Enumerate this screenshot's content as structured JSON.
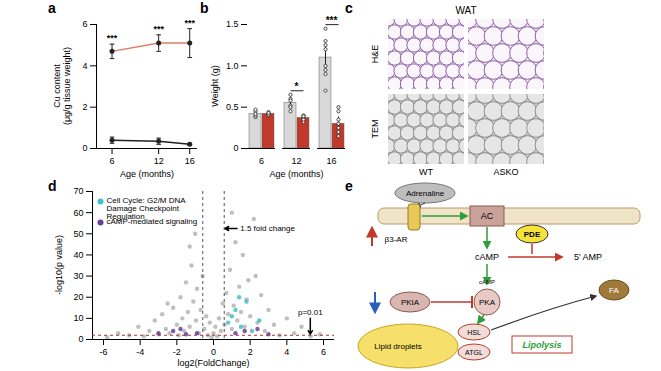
{
  "panel_labels": [
    "a",
    "b",
    "c",
    "d",
    "e"
  ],
  "chart_data": [
    {
      "type": "line",
      "x": [
        6,
        12,
        16
      ],
      "xlim": [
        4,
        17
      ],
      "xticks": [
        6,
        12,
        16
      ],
      "ylim": [
        0,
        6
      ],
      "yticks": [
        0,
        2,
        4,
        6
      ],
      "x_label": "Age (months)",
      "y_label": "Cu content\n(μg/g tissue weight)",
      "marker": "circle",
      "series": [
        {
          "color": "#e07b6a",
          "values": [
            4.7,
            5.1,
            5.1
          ],
          "errors": [
            0.35,
            0.4,
            0.7
          ],
          "significance": [
            "***",
            "***",
            "***"
          ]
        },
        {
          "color": "#222222",
          "values": [
            0.4,
            0.35,
            0.2
          ],
          "errors": [
            0.15,
            0.15,
            0.05
          ]
        }
      ]
    },
    {
      "type": "bar",
      "categories": [
        6,
        12,
        16
      ],
      "x_label": "Age (months)",
      "y_label": "Weight (g)",
      "ylim": [
        0,
        1.5
      ],
      "yticks": [
        0,
        0.5,
        {
          "value": 1,
          "label": "1.0"
        },
        1.5
      ],
      "series": [
        {
          "color": "#d9d9d9",
          "values": [
            0.42,
            0.55,
            1.1
          ],
          "errors": [
            0.04,
            0.07,
            0.15
          ],
          "points": [
            [
              0.38,
              0.45,
              0.47,
              0.4,
              0.42
            ],
            [
              0.45,
              0.6,
              0.52,
              0.65,
              0.5,
              0.58
            ],
            [
              0.7,
              1.3,
              0.95,
              1.45,
              1.0,
              1.2,
              0.9,
              1.25
            ]
          ]
        },
        {
          "color": "#c0392b",
          "values": [
            0.42,
            0.37,
            0.3
          ],
          "errors": [
            0.02,
            0.03,
            0.08
          ],
          "points": [
            [
              0.4,
              0.44,
              0.41,
              0.43
            ],
            [
              0.32,
              0.38,
              0.4,
              0.35,
              0.39
            ],
            [
              0.15,
              0.3,
              0.5,
              0.2,
              0.35,
              0.25,
              0.45
            ]
          ]
        }
      ],
      "significance": [
        null,
        "*",
        "***"
      ]
    },
    {
      "type": "scatter",
      "x_label": "log2(FoldChange)",
      "y_label": "-log10(p value)",
      "xlim": [
        -6.6,
        6.6
      ],
      "xticks": [
        -6,
        -4,
        -2,
        0,
        2,
        4,
        6
      ],
      "ylim": [
        0,
        70
      ],
      "yticks": [
        0,
        10,
        20,
        30,
        40,
        50,
        60,
        70
      ],
      "fold_change_lines": [
        -0.585,
        0.585
      ],
      "p_value_line": 2,
      "annotations": [
        "1.5 fold change",
        "p=0.01"
      ],
      "legend": "top-left",
      "series": [
        {
          "color": "#b5b5b5",
          "x": [
            -5.8,
            -5.2,
            -4.6,
            -4.1,
            -3.8,
            -3.5,
            -3.2,
            -3,
            -2.8,
            -2.6,
            -2.4,
            -2.2,
            -2,
            -1.9,
            -1.8,
            -1.7,
            -1.6,
            -1.5,
            -1.4,
            -1.3,
            -1.2,
            -1.1,
            -1,
            -0.95,
            -0.9,
            -0.8,
            -0.7,
            -0.6,
            -0.5,
            -0.4,
            -0.3,
            -0.2,
            -0.1,
            0,
            0.1,
            0.2,
            0.3,
            0.4,
            0.5,
            0.6,
            0.7,
            0.8,
            0.9,
            1,
            1.1,
            1.2,
            1.3,
            1.4,
            1.5,
            1.6,
            1.7,
            1.8,
            1.9,
            2,
            2.2,
            2.4,
            2.6,
            2.8,
            3,
            3.3,
            3.6,
            4,
            4.4,
            4.8,
            5.3,
            5.8,
            -2.5,
            2.3,
            1,
            -1.3
          ],
          "y": [
            1,
            3,
            2,
            6,
            1.5,
            4,
            9,
            2.5,
            12,
            5,
            3,
            15,
            7,
            2,
            20,
            10,
            4,
            27,
            13,
            6,
            35,
            18,
            50,
            9,
            24,
            3,
            14,
            30,
            5,
            11,
            2,
            8,
            1,
            3,
            6,
            1.5,
            10,
            4,
            17,
            7,
            22,
            12,
            33,
            5,
            16,
            46,
            9,
            25,
            13,
            40,
            6,
            19,
            28,
            11,
            57,
            8,
            21,
            4,
            14,
            7,
            2,
            10,
            3,
            6,
            1.5,
            2.5,
            17,
            30,
            60,
            44
          ]
        },
        {
          "name": "Cell Cycle: G2/M DNA Damage Checkpoint Regulation",
          "color": "#3fc1c9",
          "x": [
            0.8,
            1.2,
            1.5,
            1.8,
            2.1,
            1,
            2.5,
            1.4
          ],
          "y": [
            8,
            14,
            6,
            18,
            4,
            11,
            9,
            20
          ]
        },
        {
          "name": "cAMP-mediated signaling",
          "color": "#6a3d9a",
          "x": [
            -3,
            -2.2,
            -1.5,
            -0.9,
            1.2,
            1.7,
            2.4,
            3,
            -1.8
          ],
          "y": [
            3,
            4,
            2.5,
            3,
            3,
            4,
            5,
            2.5,
            5
          ]
        }
      ]
    }
  ],
  "images": {
    "title": "WAT",
    "rows": [
      "H&E",
      "TEM"
    ],
    "columns": [
      "WT",
      "ASKO"
    ]
  },
  "diagram": {
    "adrenaline": "Adrenaline",
    "receptor": "β3-AR",
    "ac": "AC",
    "pde": "PDE",
    "camp": "cAMP",
    "amp": "5′ AMP",
    "pkia": "PKIA",
    "pka": "PKA",
    "pka_camp": "cAMP",
    "hsl": "HSL",
    "atgl": "ATGL",
    "droplets": "Lipid droplets",
    "lipolysis": "Lipolysis",
    "fa": "FA"
  }
}
